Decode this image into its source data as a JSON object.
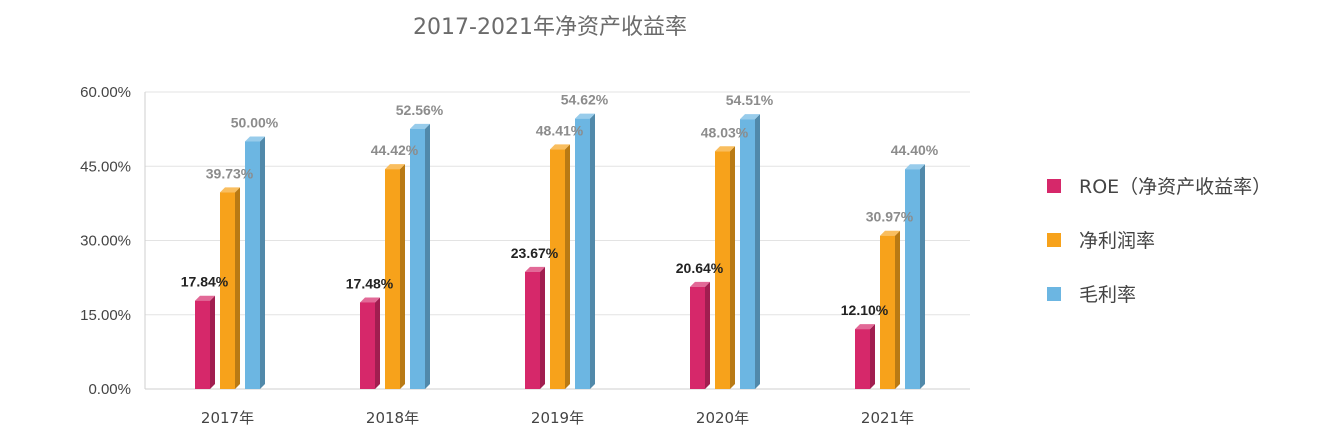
{
  "chart_data": {
    "type": "bar",
    "title": "2017-2021年净资产收益率",
    "categories": [
      "2017年",
      "2018年",
      "2019年",
      "2020年",
      "2021年"
    ],
    "series": [
      {
        "name": "ROE（净资产收益率）",
        "values": [
          17.84,
          17.48,
          23.67,
          20.64,
          12.1
        ],
        "color": "#d6286a",
        "label_color": "#222222"
      },
      {
        "name": "净利润率",
        "values": [
          39.73,
          44.42,
          48.41,
          48.03,
          30.97
        ],
        "color": "#f7a21b",
        "label_color": "#8c8c8c"
      },
      {
        "name": "毛利率",
        "values": [
          50.0,
          52.56,
          54.62,
          54.51,
          44.4
        ],
        "color": "#6cb6e2",
        "label_color": "#8c8c8c"
      }
    ],
    "ylim": [
      0,
      60
    ],
    "yticks": [
      0,
      15,
      30,
      45,
      60
    ],
    "ytick_labels": [
      "0.00%",
      "15.00%",
      "30.00%",
      "45.00%",
      "60.00%"
    ],
    "xlabel": "",
    "ylabel": "",
    "grid": true,
    "legend_position": "right"
  }
}
